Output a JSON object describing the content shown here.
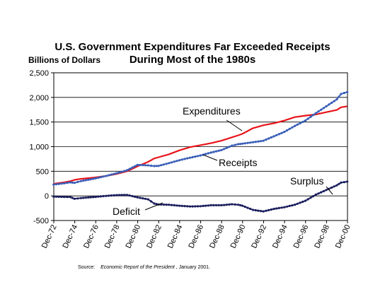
{
  "chart_data": {
    "type": "line",
    "title_line1": "U.S. Government Expenditures Far Exceeded Receipts",
    "title_line2": "During Most of the 1980s",
    "ylabel": "Billions of Dollars",
    "ylim": [
      -500,
      2500
    ],
    "yticks": [
      "2,500",
      "2,000",
      "1,500",
      "1,000",
      "500",
      "0",
      "-500"
    ],
    "ytick_values": [
      2500,
      2000,
      1500,
      1000,
      500,
      0,
      -500
    ],
    "x_start": 1972.917,
    "x_end": 2000.917,
    "xtick_labels": [
      "Dec-72",
      "Dec-74",
      "Dec-76",
      "Dec-78",
      "Dec-80",
      "Dec-82",
      "Dec-84",
      "Dec-86",
      "Dec-88",
      "Dec-90",
      "Dec-92",
      "Dec-94",
      "Dec-96",
      "Dec-98",
      "Dec-00"
    ],
    "xtick_values": [
      1972.917,
      1974.917,
      1976.917,
      1978.917,
      1980.917,
      1982.917,
      1984.917,
      1986.917,
      1988.917,
      1990.917,
      1992.917,
      1994.917,
      1996.917,
      1998.917,
      2000.917
    ],
    "colors": {
      "expenditures": "#e8141a",
      "receipts": "#3a5fb8",
      "balance": "#1c1f5e"
    },
    "series": [
      {
        "name": "Expenditures",
        "x": [
          1972.9,
          1973.9,
          1974.5,
          1974.9,
          1975.5,
          1976.9,
          1977.9,
          1978.9,
          1979.9,
          1980.9,
          1981.9,
          1982.5,
          1982.9,
          1983.9,
          1984.9,
          1985.9,
          1986.9,
          1987.9,
          1988.9,
          1989.9,
          1990.5,
          1990.9,
          1991.9,
          1992.9,
          1993.9,
          1994.9,
          1995.9,
          1996.9,
          1997.9,
          1998.9,
          1999.9,
          2000.3,
          2000.9
        ],
        "values": [
          245,
          275,
          300,
          325,
          345,
          375,
          405,
          445,
          500,
          600,
          690,
          760,
          785,
          845,
          925,
          990,
          1030,
          1070,
          1120,
          1190,
          1230,
          1260,
          1375,
          1435,
          1475,
          1530,
          1600,
          1630,
          1655,
          1700,
          1745,
          1800,
          1820
        ]
      },
      {
        "name": "Receipts",
        "x": [
          1972.9,
          1973.9,
          1974.5,
          1974.9,
          1975.5,
          1976.9,
          1977.9,
          1978.9,
          1979.9,
          1980.9,
          1981.9,
          1982.5,
          1982.9,
          1983.9,
          1984.9,
          1985.9,
          1986.9,
          1987.9,
          1988.9,
          1989.9,
          1990.5,
          1990.9,
          1991.9,
          1992.9,
          1993.9,
          1994.9,
          1995.9,
          1996.9,
          1997.9,
          1998.9,
          1999.9,
          2000.3,
          2000.9
        ],
        "values": [
          230,
          255,
          275,
          265,
          300,
          355,
          405,
          460,
          520,
          630,
          620,
          605,
          610,
          665,
          725,
          775,
          820,
          880,
          930,
          1020,
          1050,
          1060,
          1090,
          1120,
          1210,
          1300,
          1420,
          1530,
          1680,
          1820,
          1960,
          2070,
          2110
        ]
      },
      {
        "name": "Surplus / Deficit",
        "x": [
          1972.9,
          1973.9,
          1974.5,
          1974.9,
          1975.5,
          1976.9,
          1977.9,
          1978.9,
          1979.9,
          1980.9,
          1981.9,
          1982.5,
          1982.9,
          1983.9,
          1984.9,
          1985.9,
          1986.9,
          1987.9,
          1988.9,
          1989.9,
          1990.5,
          1990.9,
          1991.9,
          1992.9,
          1993.9,
          1994.9,
          1995.9,
          1996.9,
          1997.9,
          1998.9,
          1999.9,
          2000.3,
          2000.9
        ],
        "values": [
          -15,
          -20,
          -25,
          -60,
          -45,
          -20,
          0,
          15,
          20,
          -30,
          -70,
          -155,
          -175,
          -180,
          -200,
          -215,
          -210,
          -190,
          -190,
          -170,
          -180,
          -200,
          -285,
          -315,
          -265,
          -230,
          -180,
          -100,
          25,
          120,
          215,
          270,
          290
        ]
      }
    ],
    "annotations": {
      "expenditures": "Expenditures",
      "receipts": "Receipts",
      "surplus": "Surplus",
      "deficit": "Deficit"
    },
    "source_prefix": "Source:",
    "source_title": "Economic Report of the President",
    "source_suffix": ", January 2001."
  }
}
